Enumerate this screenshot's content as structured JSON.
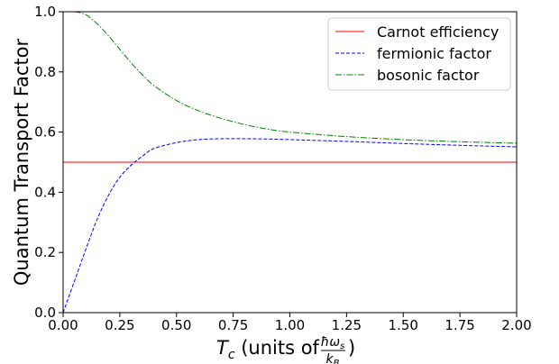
{
  "chart_data": {
    "type": "line",
    "xlabel_main": "T",
    "xlabel_sub": "c",
    "xlabel_text": " (units of ",
    "xlabel_frac_num_main": "ħω",
    "xlabel_frac_num_sub": "s",
    "xlabel_frac_den_main": "k",
    "xlabel_frac_den_sub": "B",
    "xlabel_close": ")",
    "ylabel": "Quantum Transport Factor",
    "xlim": [
      0,
      2
    ],
    "ylim": [
      0,
      1
    ],
    "xticks": [
      "0.00",
      "0.25",
      "0.50",
      "0.75",
      "1.00",
      "1.25",
      "1.50",
      "1.75",
      "2.00"
    ],
    "yticks": [
      "0.0",
      "0.2",
      "0.4",
      "0.6",
      "0.8",
      "1.0"
    ],
    "grid": false,
    "legend_position": "top-right",
    "series": [
      {
        "name": "Carnot efficiency",
        "color": "#ff0000",
        "style": "solid",
        "x": [
          0.0,
          2.0
        ],
        "y": [
          0.5,
          0.5
        ]
      },
      {
        "name": "fermionic factor",
        "color": "#0000ff",
        "style": "dashed",
        "x": [
          0.0,
          0.05,
          0.1,
          0.15,
          0.2,
          0.25,
          0.3,
          0.35,
          0.4,
          0.5,
          0.6,
          0.7,
          0.8,
          0.9,
          1.0,
          1.25,
          1.5,
          1.75,
          2.0
        ],
        "y": [
          0.0,
          0.105,
          0.21,
          0.31,
          0.39,
          0.45,
          0.49,
          0.52,
          0.545,
          0.565,
          0.575,
          0.578,
          0.578,
          0.577,
          0.575,
          0.569,
          0.562,
          0.556,
          0.551
        ]
      },
      {
        "name": "bosonic factor",
        "color": "#008000",
        "style": "dashdot",
        "x": [
          0.0,
          0.05,
          0.1,
          0.15,
          0.2,
          0.25,
          0.3,
          0.35,
          0.4,
          0.5,
          0.6,
          0.7,
          0.8,
          0.9,
          1.0,
          1.25,
          1.5,
          1.75,
          2.0
        ],
        "y": [
          1.0,
          1.0,
          0.99,
          0.96,
          0.92,
          0.875,
          0.83,
          0.79,
          0.755,
          0.705,
          0.67,
          0.645,
          0.625,
          0.61,
          0.6,
          0.585,
          0.575,
          0.568,
          0.563
        ]
      }
    ]
  }
}
